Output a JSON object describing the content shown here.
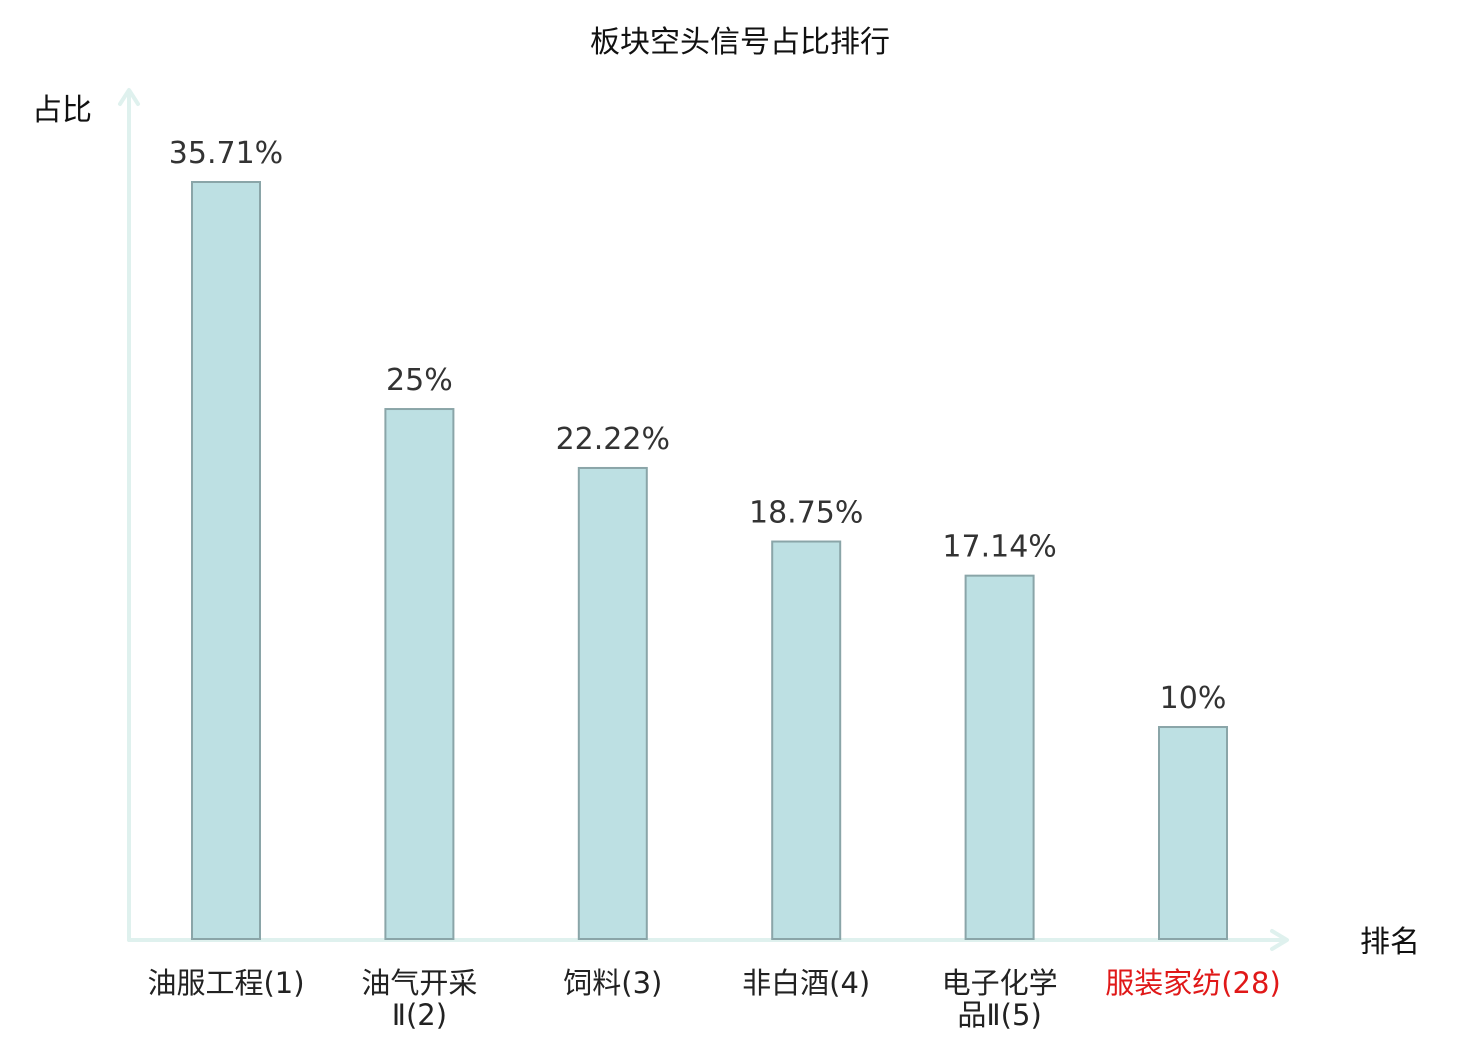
{
  "chart_data": {
    "type": "bar",
    "title": "板块空头信号占比排行",
    "ylabel": "占比",
    "xlabel": "排名",
    "categories": [
      [
        "油服工程(1)"
      ],
      [
        "油气开采",
        "Ⅱ(2)"
      ],
      [
        "饲料(3)"
      ],
      [
        "非白酒(4)"
      ],
      [
        "电子化学",
        "品Ⅱ(5)"
      ],
      [
        "服装家纺(28)"
      ]
    ],
    "values": [
      35.71,
      25,
      22.22,
      18.75,
      17.14,
      10
    ],
    "value_labels": [
      "35.71%",
      "25%",
      "22.22%",
      "18.75%",
      "17.14%",
      "10%"
    ],
    "highlight_index": 5,
    "highlight_color": "#e01818",
    "bar_color": "#bde0e3",
    "ylim": [
      0,
      35.71
    ],
    "grid": false
  }
}
